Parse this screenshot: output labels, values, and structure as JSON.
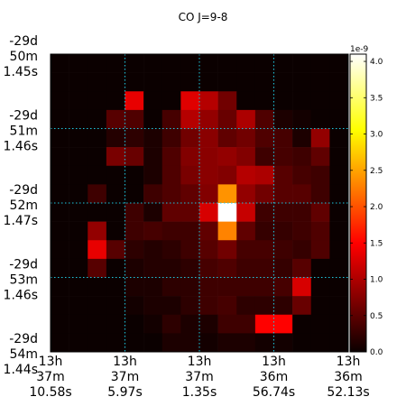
{
  "chart_data": {
    "type": "heatmap",
    "title": "CO J=9-8",
    "colormap": "hot",
    "grid": "dotted-cyan",
    "x_ticks": [
      [
        "13h",
        "37m",
        "10.58s"
      ],
      [
        "13h",
        "37m",
        "5.97s"
      ],
      [
        "13h",
        "37m",
        "1.35s"
      ],
      [
        "13h",
        "36m",
        "56.74s"
      ],
      [
        "13h",
        "36m",
        "52.13s"
      ]
    ],
    "y_ticks": [
      [
        "-29d",
        "50m",
        "1.45s"
      ],
      [
        "-29d",
        "51m",
        "1.46s"
      ],
      [
        "-29d",
        "52m",
        "1.47s"
      ],
      [
        "-29d",
        "53m",
        "1.46s"
      ],
      [
        "-29d",
        "54m",
        "1.44s"
      ]
    ],
    "colorbar": {
      "exponent_label": "1e-9",
      "min": 0.0,
      "max": 4.1,
      "tick_labels": [
        "0.0",
        "0.5",
        "1.0",
        "1.5",
        "2.0",
        "2.5",
        "3.0",
        "3.5",
        "4.0"
      ]
    },
    "values": [
      [
        0,
        0,
        0,
        0,
        0,
        0,
        0,
        0,
        0,
        0,
        0,
        0,
        0,
        0,
        0,
        0
      ],
      [
        0,
        0,
        0,
        0,
        0,
        0,
        0,
        0,
        0,
        0,
        0,
        0,
        0,
        0,
        0,
        0
      ],
      [
        0,
        0,
        0,
        0,
        1.3,
        0,
        0,
        1.25,
        1.0,
        0.6,
        0,
        0,
        0,
        0,
        0,
        0
      ],
      [
        0,
        0,
        0,
        0.45,
        0.4,
        0,
        0.35,
        1.0,
        0.8,
        0.55,
        0.95,
        0.4,
        0.1,
        0.05,
        0,
        0
      ],
      [
        0,
        0,
        0,
        0.15,
        0.2,
        0.1,
        0.3,
        0.6,
        0.75,
        0.5,
        0.6,
        0.4,
        0.35,
        0.1,
        0.8,
        0
      ],
      [
        0,
        0,
        0,
        0.65,
        0.55,
        0.1,
        0.4,
        0.7,
        0.75,
        0.8,
        0.7,
        0.3,
        0.35,
        0.3,
        0.5,
        0
      ],
      [
        0,
        0,
        0,
        0,
        0,
        0.1,
        0.4,
        0.65,
        0.75,
        0.7,
        1.0,
        0.95,
        0.45,
        0.35,
        0.3,
        0
      ],
      [
        0,
        0,
        0.3,
        0,
        0,
        0.3,
        0.4,
        0.5,
        0.7,
        2.4,
        0.8,
        0.6,
        0.45,
        0.45,
        0.3,
        0
      ],
      [
        0,
        0,
        0,
        0,
        0.3,
        0.1,
        0.5,
        0.5,
        1.2,
        4.1,
        1.1,
        0.3,
        0.3,
        0.3,
        0.5,
        0
      ],
      [
        0,
        0,
        0.8,
        0,
        0.3,
        0.35,
        0.3,
        0.3,
        0.5,
        2.3,
        0.5,
        0.25,
        0.25,
        0.3,
        0.4,
        0
      ],
      [
        0,
        0,
        1.3,
        0.45,
        0.2,
        0.15,
        0.2,
        0.3,
        0.45,
        0.6,
        0.35,
        0.35,
        0.3,
        0.25,
        0.4,
        0
      ],
      [
        0,
        0,
        0.45,
        0,
        0.1,
        0.15,
        0.15,
        0.2,
        0.35,
        0.4,
        0.3,
        0.3,
        0.25,
        0.45,
        0,
        0
      ],
      [
        0,
        0,
        0,
        0,
        0.1,
        0.1,
        0.2,
        0.2,
        0.3,
        0.3,
        0.3,
        0.3,
        0.35,
        1.2,
        0,
        0
      ],
      [
        0,
        0,
        0,
        0,
        0.05,
        0.1,
        0.1,
        0.2,
        0.3,
        0.35,
        0.2,
        0.2,
        0.2,
        0.55,
        0,
        0
      ],
      [
        0,
        0,
        0,
        0,
        0,
        0.05,
        0.2,
        0.1,
        0.1,
        0.3,
        0.3,
        1.5,
        1.5,
        0,
        0,
        0
      ],
      [
        0,
        0,
        0,
        0,
        0,
        0,
        0.1,
        0.1,
        0.05,
        0.1,
        0.1,
        0.05,
        0.05,
        0,
        0,
        0
      ]
    ]
  }
}
